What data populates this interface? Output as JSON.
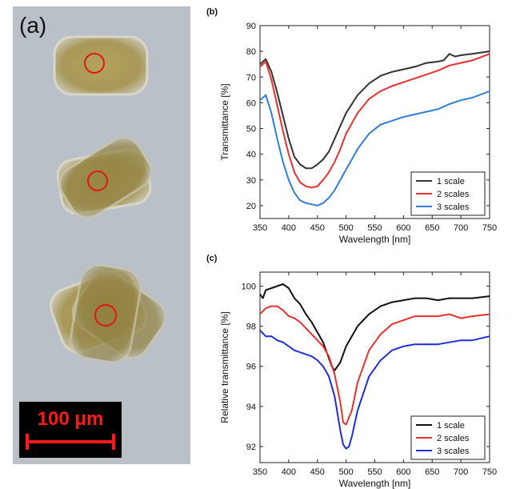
{
  "panel_a": {
    "label": "(a)",
    "scale_bar": "100 μm"
  },
  "colors": {
    "background": "#b9c0c8",
    "cell_fill": "#b4a05e",
    "circle": "#e01818",
    "scalebar": "#ff1a1a"
  },
  "chart_data": [
    {
      "panel_label": "(b)",
      "type": "line",
      "xlabel": "Wavelength [nm]",
      "ylabel": "Transmittance [%]",
      "xlim": [
        350,
        750
      ],
      "ylim": [
        15,
        90
      ],
      "xticks": [
        350,
        400,
        450,
        500,
        550,
        600,
        650,
        700,
        750
      ],
      "yticks": [
        20,
        30,
        40,
        50,
        60,
        70,
        80,
        90
      ],
      "legend_position": "bottom-right",
      "grid": false,
      "series": [
        {
          "name": "1 scale",
          "color": "#333333",
          "x": [
            350,
            360,
            370,
            380,
            390,
            400,
            410,
            420,
            430,
            440,
            450,
            460,
            470,
            480,
            490,
            500,
            520,
            540,
            560,
            580,
            600,
            620,
            640,
            660,
            670,
            680,
            690,
            700,
            720,
            750
          ],
          "y": [
            75,
            77,
            72,
            64,
            55,
            46,
            39,
            36,
            34.5,
            34.5,
            36,
            38,
            41,
            46,
            51,
            56,
            63,
            67.5,
            70.5,
            72,
            73,
            74,
            75.5,
            76,
            76.5,
            79,
            78,
            78.5,
            79,
            80
          ]
        },
        {
          "name": "2 scales",
          "color": "#e8312f",
          "x": [
            350,
            360,
            370,
            380,
            390,
            400,
            410,
            420,
            430,
            440,
            450,
            460,
            470,
            480,
            490,
            500,
            520,
            540,
            560,
            580,
            600,
            620,
            640,
            660,
            680,
            700,
            720,
            750
          ],
          "y": [
            74,
            76,
            69,
            59,
            49,
            40,
            33,
            29,
            27.5,
            27,
            27.5,
            30,
            33,
            37,
            42,
            48,
            56,
            61.5,
            64.5,
            66.5,
            68,
            69.5,
            71,
            72.5,
            74.5,
            75.5,
            76.5,
            79
          ]
        },
        {
          "name": "3 scales",
          "color": "#2f7fd8",
          "x": [
            350,
            360,
            370,
            380,
            390,
            400,
            410,
            420,
            430,
            440,
            450,
            460,
            470,
            480,
            490,
            500,
            520,
            540,
            560,
            580,
            600,
            620,
            640,
            660,
            680,
            700,
            720,
            750
          ],
          "y": [
            61,
            63,
            56,
            46,
            37,
            30,
            25,
            22,
            21,
            20.5,
            20,
            21,
            23,
            26,
            30,
            34,
            42,
            48,
            51.5,
            53,
            54.5,
            55.5,
            56.5,
            57.5,
            59.5,
            61,
            62,
            64.5
          ]
        }
      ]
    },
    {
      "panel_label": "(c)",
      "type": "line",
      "xlabel": "Wavelength [nm]",
      "ylabel": "Relative transmittance [%]",
      "xlim": [
        350,
        750
      ],
      "ylim": [
        91.2,
        100.7
      ],
      "xticks": [
        350,
        400,
        450,
        500,
        550,
        600,
        650,
        700,
        750
      ],
      "yticks": [
        92,
        94,
        96,
        98,
        100
      ],
      "legend_position": "bottom-right",
      "grid": false,
      "series": [
        {
          "name": "1 scale",
          "color": "#111111",
          "x": [
            350,
            355,
            360,
            370,
            380,
            390,
            400,
            410,
            420,
            430,
            440,
            450,
            460,
            470,
            475,
            480,
            490,
            500,
            520,
            540,
            560,
            580,
            600,
            620,
            640,
            660,
            680,
            700,
            720,
            750
          ],
          "y": [
            99.6,
            99.4,
            99.8,
            99.9,
            100.0,
            100.1,
            99.9,
            99.4,
            99.1,
            98.6,
            98.2,
            97.7,
            97.2,
            96.4,
            96.0,
            95.8,
            96.2,
            97.0,
            98.0,
            98.6,
            99.0,
            99.2,
            99.3,
            99.4,
            99.4,
            99.3,
            99.4,
            99.4,
            99.4,
            99.5
          ]
        },
        {
          "name": "2 scales",
          "color": "#e8312f",
          "x": [
            350,
            360,
            370,
            380,
            390,
            400,
            410,
            420,
            430,
            440,
            450,
            460,
            470,
            480,
            490,
            495,
            500,
            510,
            520,
            540,
            560,
            580,
            600,
            620,
            640,
            660,
            680,
            700,
            720,
            750
          ],
          "y": [
            98.6,
            98.9,
            99.0,
            99.0,
            98.8,
            98.5,
            98.4,
            98.2,
            97.9,
            97.6,
            97.3,
            97.0,
            96.5,
            95.6,
            94.2,
            93.2,
            93.1,
            93.8,
            95.2,
            96.8,
            97.6,
            98.1,
            98.3,
            98.5,
            98.5,
            98.5,
            98.6,
            98.4,
            98.5,
            98.6
          ]
        },
        {
          "name": "3 scales",
          "color": "#1f2fd8",
          "x": [
            350,
            360,
            370,
            380,
            390,
            400,
            410,
            420,
            430,
            440,
            450,
            460,
            470,
            480,
            490,
            495,
            500,
            505,
            510,
            520,
            540,
            560,
            580,
            600,
            620,
            640,
            660,
            680,
            700,
            720,
            750
          ],
          "y": [
            97.8,
            97.5,
            97.5,
            97.3,
            97.2,
            97.0,
            96.8,
            96.7,
            96.6,
            96.5,
            96.3,
            96.0,
            95.5,
            94.5,
            92.8,
            92.1,
            91.9,
            92.0,
            92.5,
            93.8,
            95.5,
            96.3,
            96.8,
            97.0,
            97.1,
            97.1,
            97.1,
            97.2,
            97.3,
            97.3,
            97.5
          ]
        }
      ]
    }
  ]
}
